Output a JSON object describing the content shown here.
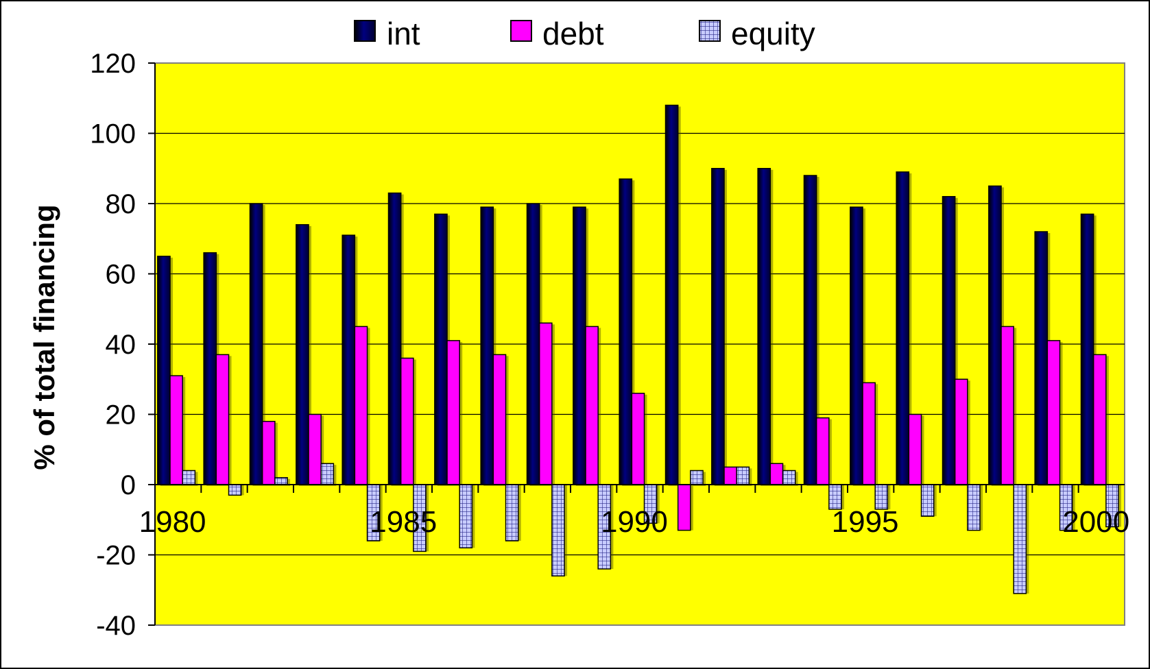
{
  "chart_data": {
    "type": "bar",
    "title": "",
    "xlabel": "",
    "ylabel": "% of total financing",
    "ylim": [
      -40,
      120
    ],
    "yticks": [
      120,
      100,
      80,
      60,
      40,
      20,
      0,
      -20,
      -40
    ],
    "categories": [
      "1980",
      "1981",
      "1982",
      "1983",
      "1984",
      "1985",
      "1986",
      "1987",
      "1988",
      "1989",
      "1990",
      "1991",
      "1992",
      "1993",
      "1994",
      "1995",
      "1996",
      "1997",
      "1998",
      "1999",
      "2000"
    ],
    "category_labels": [
      "1980",
      "1985",
      "1990",
      "1995",
      "2000"
    ],
    "legend_position": "top",
    "grid": true,
    "plot_background": "#ffff00",
    "series": [
      {
        "name": "int",
        "color": "#000066",
        "pattern": "solid-dark",
        "values": [
          65,
          66,
          80,
          74,
          71,
          83,
          77,
          79,
          80,
          79,
          87,
          108,
          90,
          90,
          88,
          79,
          89,
          82,
          85,
          72,
          77
        ]
      },
      {
        "name": "debt",
        "color": "#ff00ff",
        "pattern": "solid",
        "values": [
          31,
          37,
          18,
          20,
          45,
          36,
          41,
          37,
          46,
          45,
          26,
          -13,
          5,
          6,
          19,
          29,
          20,
          30,
          45,
          41,
          37
        ]
      },
      {
        "name": "equity",
        "color": "#b0b8f0",
        "pattern": "grid",
        "values": [
          4,
          -3,
          2,
          6,
          -16,
          -19,
          -18,
          -16,
          -26,
          -24,
          -11,
          4,
          5,
          4,
          -7,
          -7,
          -9,
          -13,
          -31,
          -13,
          -12
        ]
      }
    ]
  }
}
